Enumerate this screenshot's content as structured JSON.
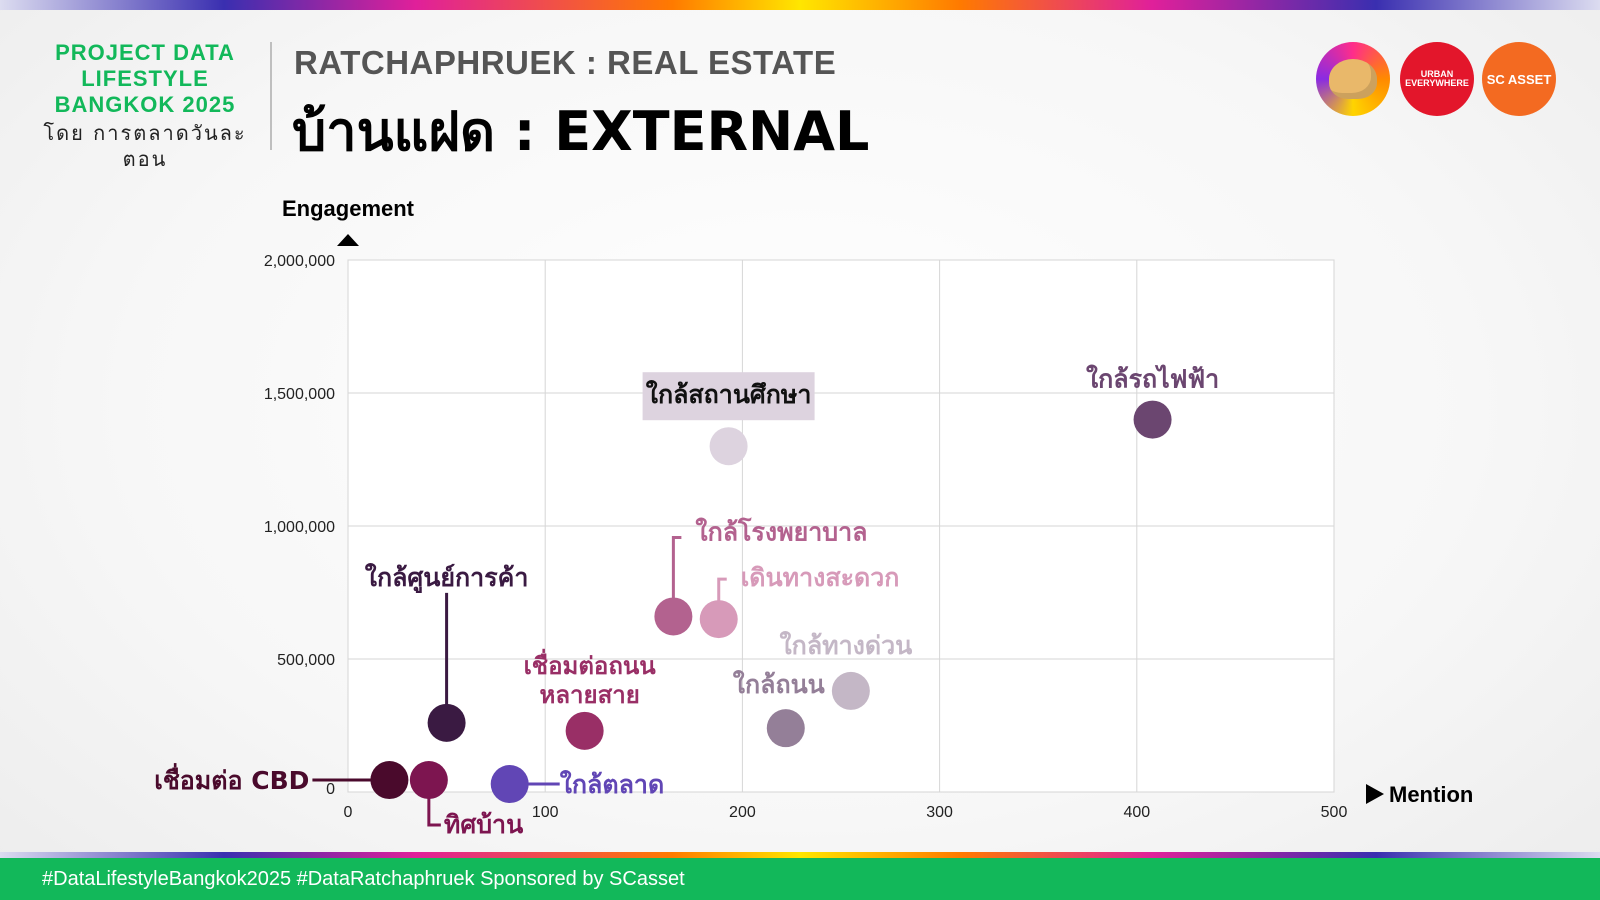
{
  "header": {
    "brand_line1": "PROJECT DATA",
    "brand_line2": "LIFESTYLE",
    "brand_line3": "BANGKOK 2025",
    "brand_by": "โดย การตลาดวันละตอน",
    "kicker": "RATCHAPHRUEK : REAL ESTATE",
    "title": "บ้านแฝด : EXTERNAL"
  },
  "logos": {
    "urban_line1": "URBAN",
    "urban_line2": "EVERYWHERE",
    "sc": "SC ASSET"
  },
  "footer": {
    "text": "#DataLifestyleBangkok2025 #DataRatchaphruek Sponsored by SCasset"
  },
  "chart_data": {
    "type": "scatter",
    "xlabel": "Mention",
    "ylabel": "Engagement",
    "xlim": [
      0,
      500
    ],
    "ylim": [
      0,
      2000000
    ],
    "x_ticks": [
      0,
      100,
      200,
      300,
      400,
      500
    ],
    "y_ticks": [
      0,
      500000,
      1000000,
      1500000,
      2000000
    ],
    "x_tick_labels": [
      "0",
      "100",
      "200",
      "300",
      "400",
      "500"
    ],
    "y_tick_labels": [
      "0",
      "500,000",
      "1,000,000",
      "1,500,000",
      "2,000,000"
    ],
    "grid": true,
    "points": [
      {
        "label": "ใกล้รถไฟฟ้า",
        "x": 408,
        "y": 1400000,
        "color": "#6b4670"
      },
      {
        "label": "ใกล้สถานศึกษา",
        "x": 193,
        "y": 1300000,
        "color": "#ddd3df",
        "label_color": "#111111"
      },
      {
        "label": "ใกล้โรงพยาบาล",
        "x": 165,
        "y": 660000,
        "color": "#b3628f"
      },
      {
        "label": "เดินทางสะดวก",
        "x": 188,
        "y": 650000,
        "color": "#d79ab9"
      },
      {
        "label": "ใกล้ทางด่วน",
        "x": 255,
        "y": 380000,
        "color": "#c4b7c6"
      },
      {
        "label": "ใกล้ถนน",
        "x": 222,
        "y": 240000,
        "color": "#947f98"
      },
      {
        "label": "ใกล้ศูนย์การค้า",
        "x": 50,
        "y": 260000,
        "color": "#3a1a42"
      },
      {
        "label": "เชื่อมต่อถนนหลายสาย",
        "x": 120,
        "y": 230000,
        "color": "#992f66"
      },
      {
        "label": "เชื่อมต่อ CBD",
        "x": 21,
        "y": 45000,
        "color": "#4a0a2c"
      },
      {
        "label": "ทิศบ้าน",
        "x": 41,
        "y": 45000,
        "color": "#7d1550"
      },
      {
        "label": "ใกล้ตลาด",
        "x": 82,
        "y": 30000,
        "color": "#6146b5"
      }
    ]
  }
}
